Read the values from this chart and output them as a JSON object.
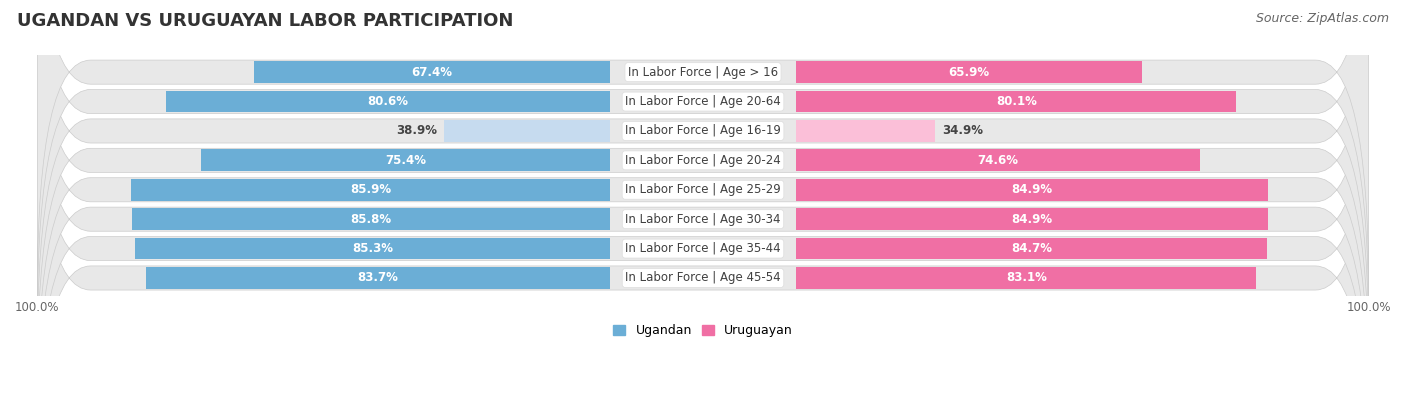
{
  "title": "UGANDAN VS URUGUAYAN LABOR PARTICIPATION",
  "source": "Source: ZipAtlas.com",
  "categories": [
    "In Labor Force | Age > 16",
    "In Labor Force | Age 20-64",
    "In Labor Force | Age 16-19",
    "In Labor Force | Age 20-24",
    "In Labor Force | Age 25-29",
    "In Labor Force | Age 30-34",
    "In Labor Force | Age 35-44",
    "In Labor Force | Age 45-54"
  ],
  "ugandan_values": [
    67.4,
    80.6,
    38.9,
    75.4,
    85.9,
    85.8,
    85.3,
    83.7
  ],
  "uruguayan_values": [
    65.9,
    80.1,
    34.9,
    74.6,
    84.9,
    84.9,
    84.7,
    83.1
  ],
  "ugandan_color_full": "#6BAED6",
  "ugandan_color_light": "#C6DBEF",
  "uruguayan_color_full": "#F06FA4",
  "uruguayan_color_light": "#FBBFD8",
  "row_bg_color": "#E8E8E8",
  "center_label_bg": "#FFFFFF",
  "max_value": 100.0,
  "title_fontsize": 13,
  "label_fontsize": 8.5,
  "value_fontsize": 8.5,
  "tick_fontsize": 8.5,
  "legend_fontsize": 9,
  "source_fontsize": 9
}
